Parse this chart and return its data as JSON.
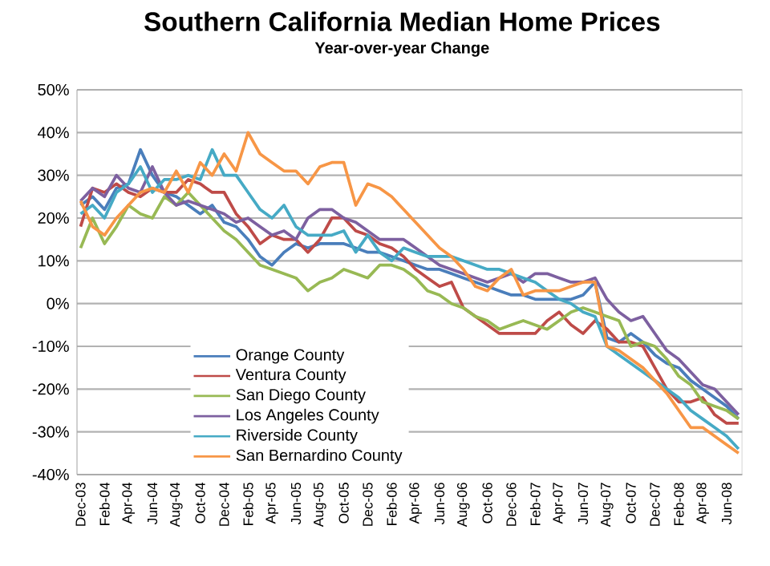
{
  "chart_data": {
    "type": "line",
    "title": "Southern California Median Home Prices",
    "subtitle": "Year-over-year Change",
    "categories": [
      "Dec-03",
      null,
      "Feb-04",
      null,
      "Apr-04",
      null,
      "Jun-04",
      null,
      "Aug-04",
      null,
      "Oct-04",
      null,
      "Dec-04",
      null,
      "Feb-05",
      null,
      "Apr-05",
      null,
      "Jun-05",
      null,
      "Aug-05",
      null,
      "Oct-05",
      null,
      "Dec-05",
      null,
      "Feb-06",
      null,
      "Apr-06",
      null,
      "Jun-06",
      null,
      "Aug-06",
      null,
      "Oct-06",
      null,
      "Dec-06",
      null,
      "Feb-07",
      null,
      "Apr-07",
      null,
      "Jun-07",
      null,
      "Aug-07",
      null,
      "Oct-07",
      null,
      "Dec-07",
      null,
      "Feb-08",
      null,
      "Apr-08",
      null,
      "Jun-08",
      null
    ],
    "series": [
      {
        "name": "Orange County",
        "color": "#4a7ebb",
        "values": [
          23,
          25,
          22,
          27,
          28,
          36,
          30,
          26,
          25,
          23,
          21,
          23,
          19,
          18,
          15,
          11,
          9,
          12,
          14,
          13,
          14,
          14,
          14,
          13,
          12,
          12,
          11,
          10,
          9,
          8,
          8,
          7,
          6,
          5,
          4,
          3,
          2,
          2,
          1,
          1,
          1,
          1,
          2,
          5,
          -8,
          -9,
          -7,
          -9,
          -12,
          -14,
          -15,
          -18,
          -20,
          -22,
          -24,
          -27
        ]
      },
      {
        "name": "Ventura County",
        "color": "#be4b48",
        "values": [
          18,
          27,
          26,
          28,
          26,
          25,
          27,
          26,
          26,
          29,
          28,
          26,
          26,
          21,
          18,
          14,
          16,
          15,
          15,
          12,
          15,
          20,
          20,
          17,
          16,
          14,
          13,
          11,
          8,
          6,
          4,
          5,
          -1,
          -3,
          -5,
          -7,
          -7,
          -7,
          -7,
          -4,
          -2,
          -5,
          -7,
          -4,
          -6,
          -9,
          -9,
          -10,
          -15,
          -20,
          -23,
          -23,
          -22,
          -26,
          -28,
          -28
        ]
      },
      {
        "name": "San Diego County",
        "color": "#98b954",
        "values": [
          13,
          20,
          14,
          18,
          23,
          21,
          20,
          25,
          23,
          26,
          23,
          20,
          17,
          15,
          12,
          9,
          8,
          7,
          6,
          3,
          5,
          6,
          8,
          7,
          6,
          9,
          9,
          8,
          6,
          3,
          2,
          0,
          -1,
          -3,
          -4,
          -6,
          -5,
          -4,
          -5,
          -6,
          -4,
          -2,
          -1,
          -2,
          -3,
          -4,
          -10,
          -9,
          -10,
          -13,
          -17,
          -19,
          -23,
          -24,
          -25,
          -27
        ]
      },
      {
        "name": "Los Angeles County",
        "color": "#7d60a0",
        "values": [
          24,
          27,
          25,
          30,
          27,
          26,
          32,
          26,
          23,
          24,
          23,
          22,
          21,
          19,
          20,
          18,
          16,
          17,
          15,
          20,
          22,
          22,
          20,
          19,
          17,
          15,
          15,
          15,
          13,
          11,
          9,
          8,
          7,
          6,
          5,
          6,
          7,
          5,
          7,
          7,
          6,
          5,
          5,
          6,
          1,
          -2,
          -4,
          -3,
          -7,
          -11,
          -13,
          -16,
          -19,
          -20,
          -23,
          -26
        ]
      },
      {
        "name": "Riverside County",
        "color": "#46aac5",
        "values": [
          21,
          23,
          20,
          26,
          28,
          32,
          26,
          29,
          29,
          30,
          29,
          36,
          30,
          30,
          26,
          22,
          20,
          23,
          18,
          16,
          16,
          16,
          17,
          12,
          16,
          12,
          10,
          13,
          12,
          11,
          11,
          11,
          10,
          9,
          8,
          8,
          7,
          6,
          5,
          3,
          1,
          0,
          -2,
          -3,
          -10,
          -12,
          -14,
          -16,
          -18,
          -20,
          -22,
          -25,
          -27,
          -29,
          -31,
          -34
        ]
      },
      {
        "name": "San Bernardino County",
        "color": "#f79646",
        "values": [
          24,
          18,
          16,
          20,
          23,
          26,
          27,
          26,
          31,
          26,
          33,
          30,
          35,
          31,
          40,
          35,
          33,
          31,
          31,
          28,
          32,
          33,
          33,
          23,
          28,
          27,
          25,
          22,
          19,
          16,
          13,
          11,
          8,
          4,
          3,
          6,
          8,
          2,
          3,
          3,
          3,
          4,
          5,
          5,
          -10,
          -11,
          -13,
          -15,
          -18,
          -21,
          -25,
          -29,
          -29,
          -31,
          -33,
          -35
        ]
      }
    ],
    "ylim": [
      -40,
      50
    ],
    "yticks": [
      {
        "value": -40,
        "label": "-40%"
      },
      {
        "value": -30,
        "label": "-30%"
      },
      {
        "value": -20,
        "label": "-20%"
      },
      {
        "value": -10,
        "label": "-10%"
      },
      {
        "value": 0,
        "label": "0%"
      },
      {
        "value": 10,
        "label": "10%"
      },
      {
        "value": 20,
        "label": "20%"
      },
      {
        "value": 30,
        "label": "30%"
      },
      {
        "value": 40,
        "label": "40%"
      },
      {
        "value": 50,
        "label": "50%"
      }
    ],
    "grid": "y",
    "legend": "bottom left",
    "marker": "none",
    "line_style": "solid"
  }
}
